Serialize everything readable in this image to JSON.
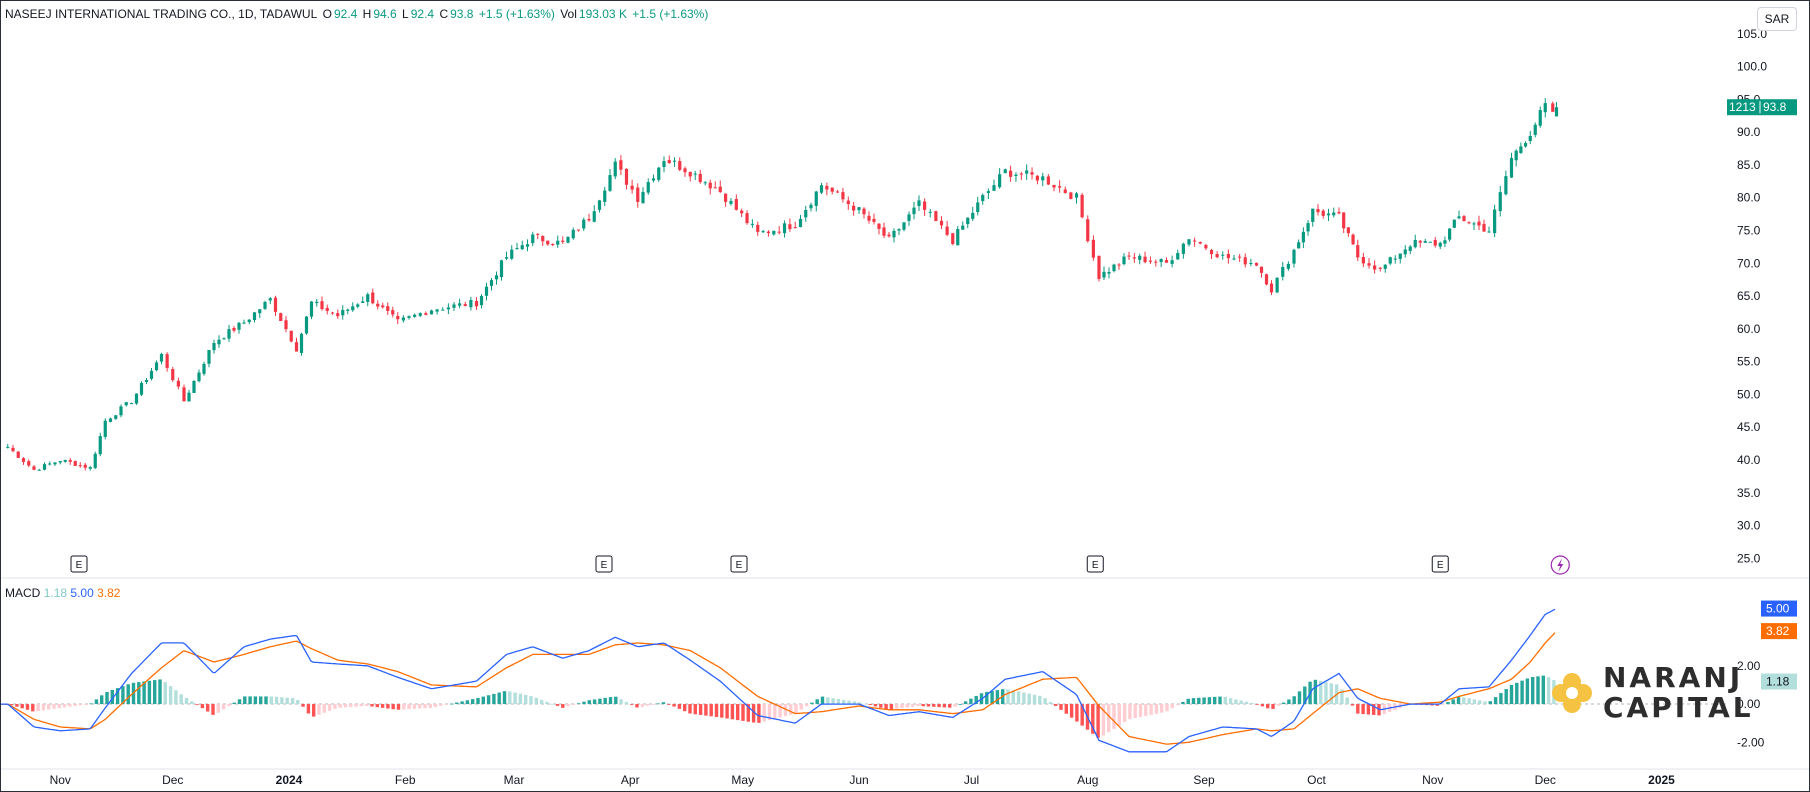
{
  "header": {
    "symbol": "NASEEJ INTERNATIONAL TRADING CO., 1D, TADAWUL",
    "open_label": "O",
    "open": "92.4",
    "high_label": "H",
    "high": "94.6",
    "low_label": "L",
    "low": "92.4",
    "close_label": "C",
    "close": "93.8",
    "change": "+1.5 (+1.63%)",
    "vol_label": "Vol",
    "vol": "193.03 K",
    "vol_change": "+1.5 (+1.63%)"
  },
  "currency": "SAR",
  "macd_header": {
    "label": "MACD",
    "hist": "1.18",
    "macd": "5.00",
    "signal": "3.82"
  },
  "price_badge": {
    "left": "1213",
    "price": "93.8"
  },
  "brand": {
    "line1": "NARANJ",
    "line2": "CAPITAL"
  },
  "event_marker": "E",
  "colors": {
    "up": "#089981",
    "down": "#f23645",
    "macd": "#2962ff",
    "signal": "#ff6d00",
    "hist_up_strong": "#26a69a",
    "hist_up_weak": "#b2dfdb",
    "hist_down_strong": "#ff5252",
    "hist_down_weak": "#ffcdd2",
    "brand_gold": "#f5c242"
  },
  "chart_data": [
    {
      "type": "candlestick",
      "title": "NASEEJ INTERNATIONAL TRADING CO., 1D, TADAWUL",
      "ylim": [
        22,
        110
      ],
      "y_ticks": [
        25.0,
        30.0,
        35.0,
        40.0,
        45.0,
        50.0,
        55.0,
        60.0,
        65.0,
        70.0,
        75.0,
        80.0,
        85.0,
        90.0,
        95.0,
        100.0,
        105.0
      ],
      "x_ticks": [
        "Nov",
        "Dec",
        "2024",
        "Feb",
        "Mar",
        "Apr",
        "May",
        "Jun",
        "Jul",
        "Aug",
        "Sep",
        "Oct",
        "Nov",
        "Dec",
        "2025"
      ],
      "close_path": [
        {
          "date": "2023-10-18",
          "close": 42
        },
        {
          "date": "2023-10-25",
          "close": 38.5
        },
        {
          "date": "2023-11-01",
          "close": 40
        },
        {
          "date": "2023-11-09",
          "close": 38.8
        },
        {
          "date": "2023-11-13",
          "close": 46
        },
        {
          "date": "2023-11-20",
          "close": 49
        },
        {
          "date": "2023-11-28",
          "close": 56
        },
        {
          "date": "2023-12-04",
          "close": 49
        },
        {
          "date": "2023-12-12",
          "close": 58
        },
        {
          "date": "2023-12-20",
          "close": 61
        },
        {
          "date": "2023-12-27",
          "close": 64.5
        },
        {
          "date": "2024-01-03",
          "close": 57
        },
        {
          "date": "2024-01-07",
          "close": 64
        },
        {
          "date": "2024-01-14",
          "close": 62
        },
        {
          "date": "2024-01-22",
          "close": 65
        },
        {
          "date": "2024-01-30",
          "close": 61
        },
        {
          "date": "2024-02-08",
          "close": 63
        },
        {
          "date": "2024-02-20",
          "close": 64
        },
        {
          "date": "2024-02-28",
          "close": 71
        },
        {
          "date": "2024-03-06",
          "close": 74
        },
        {
          "date": "2024-03-14",
          "close": 73
        },
        {
          "date": "2024-03-21",
          "close": 77
        },
        {
          "date": "2024-03-28",
          "close": 85
        },
        {
          "date": "2024-04-03",
          "close": 80
        },
        {
          "date": "2024-04-10",
          "close": 86
        },
        {
          "date": "2024-04-17",
          "close": 84
        },
        {
          "date": "2024-04-25",
          "close": 81
        },
        {
          "date": "2024-05-05",
          "close": 74.5
        },
        {
          "date": "2024-05-15",
          "close": 76
        },
        {
          "date": "2024-05-22",
          "close": 82
        },
        {
          "date": "2024-06-01",
          "close": 78
        },
        {
          "date": "2024-06-09",
          "close": 73.5
        },
        {
          "date": "2024-06-17",
          "close": 79
        },
        {
          "date": "2024-06-26",
          "close": 73.5
        },
        {
          "date": "2024-07-04",
          "close": 80
        },
        {
          "date": "2024-07-10",
          "close": 84
        },
        {
          "date": "2024-07-20",
          "close": 83
        },
        {
          "date": "2024-07-29",
          "close": 80
        },
        {
          "date": "2024-08-04",
          "close": 68
        },
        {
          "date": "2024-08-12",
          "close": 71
        },
        {
          "date": "2024-08-22",
          "close": 70
        },
        {
          "date": "2024-08-28",
          "close": 74
        },
        {
          "date": "2024-09-06",
          "close": 71
        },
        {
          "date": "2024-09-15",
          "close": 70
        },
        {
          "date": "2024-09-19",
          "close": 66
        },
        {
          "date": "2024-09-25",
          "close": 72
        },
        {
          "date": "2024-09-30",
          "close": 78
        },
        {
          "date": "2024-10-07",
          "close": 77
        },
        {
          "date": "2024-10-12",
          "close": 71
        },
        {
          "date": "2024-10-18",
          "close": 69
        },
        {
          "date": "2024-10-26",
          "close": 73
        },
        {
          "date": "2024-11-03",
          "close": 73
        },
        {
          "date": "2024-11-08",
          "close": 77
        },
        {
          "date": "2024-11-16",
          "close": 75
        },
        {
          "date": "2024-11-22",
          "close": 86
        },
        {
          "date": "2024-11-27",
          "close": 90
        },
        {
          "date": "2024-12-01",
          "close": 94
        },
        {
          "date": "2024-12-03",
          "close": 92.4
        },
        {
          "date": "2024-12-04",
          "close": 93.8
        }
      ],
      "last": {
        "open": 92.4,
        "high": 94.6,
        "low": 92.4,
        "close": 93.8,
        "change": 1.5,
        "change_pct": 1.63,
        "volume": "193.03 K"
      },
      "event_dates": [
        "2023-11-06",
        "2024-03-25",
        "2024-04-30",
        "2024-08-03",
        "2024-11-03"
      ]
    },
    {
      "type": "line",
      "title": "MACD",
      "ylim": [
        -3.4,
        6.6
      ],
      "y_ticks": [
        -2.0,
        0.0,
        2.0
      ],
      "last": {
        "histogram": 1.18,
        "macd": 5.0,
        "signal": 3.82
      },
      "series": [
        {
          "name": "MACD",
          "points": [
            {
              "date": "2023-10-18",
              "value": 0
            },
            {
              "date": "2023-10-25",
              "value": -1.2
            },
            {
              "date": "2023-11-01",
              "value": -1.4
            },
            {
              "date": "2023-11-09",
              "value": -1.3
            },
            {
              "date": "2023-11-13",
              "value": -0.2
            },
            {
              "date": "2023-11-20",
              "value": 1.6
            },
            {
              "date": "2023-11-28",
              "value": 3.2
            },
            {
              "date": "2023-12-04",
              "value": 3.2
            },
            {
              "date": "2023-12-12",
              "value": 1.6
            },
            {
              "date": "2023-12-20",
              "value": 3
            },
            {
              "date": "2023-12-27",
              "value": 3.4
            },
            {
              "date": "2024-01-03",
              "value": 3.6
            },
            {
              "date": "2024-01-07",
              "value": 2.2
            },
            {
              "date": "2024-01-14",
              "value": 2.1
            },
            {
              "date": "2024-01-22",
              "value": 2
            },
            {
              "date": "2024-01-30",
              "value": 1.4
            },
            {
              "date": "2024-02-08",
              "value": 0.8
            },
            {
              "date": "2024-02-20",
              "value": 1.2
            },
            {
              "date": "2024-02-28",
              "value": 2.6
            },
            {
              "date": "2024-03-06",
              "value": 3.0
            },
            {
              "date": "2024-03-14",
              "value": 2.4
            },
            {
              "date": "2024-03-21",
              "value": 2.8
            },
            {
              "date": "2024-03-28",
              "value": 3.5
            },
            {
              "date": "2024-04-03",
              "value": 3.0
            },
            {
              "date": "2024-04-10",
              "value": 3.2
            },
            {
              "date": "2024-04-17",
              "value": 2.3
            },
            {
              "date": "2024-04-25",
              "value": 1.2
            },
            {
              "date": "2024-05-05",
              "value": -0.6
            },
            {
              "date": "2024-05-15",
              "value": -1.0
            },
            {
              "date": "2024-05-22",
              "value": 0.0
            },
            {
              "date": "2024-06-01",
              "value": 0.0
            },
            {
              "date": "2024-06-09",
              "value": -0.6
            },
            {
              "date": "2024-06-17",
              "value": -0.4
            },
            {
              "date": "2024-06-26",
              "value": -0.7
            },
            {
              "date": "2024-07-04",
              "value": 0.3
            },
            {
              "date": "2024-07-10",
              "value": 1.3
            },
            {
              "date": "2024-07-20",
              "value": 1.7
            },
            {
              "date": "2024-07-29",
              "value": 0.5
            },
            {
              "date": "2024-08-04",
              "value": -1.9
            },
            {
              "date": "2024-08-12",
              "value": -2.5
            },
            {
              "date": "2024-08-22",
              "value": -2.5
            },
            {
              "date": "2024-08-28",
              "value": -1.7
            },
            {
              "date": "2024-09-06",
              "value": -1.2
            },
            {
              "date": "2024-09-15",
              "value": -1.3
            },
            {
              "date": "2024-09-19",
              "value": -1.7
            },
            {
              "date": "2024-09-25",
              "value": -0.9
            },
            {
              "date": "2024-09-30",
              "value": 0.8
            },
            {
              "date": "2024-10-07",
              "value": 1.6
            },
            {
              "date": "2024-10-12",
              "value": 0.3
            },
            {
              "date": "2024-10-18",
              "value": -0.3
            },
            {
              "date": "2024-10-26",
              "value": 0.0
            },
            {
              "date": "2024-11-03",
              "value": 0.0
            },
            {
              "date": "2024-11-08",
              "value": 0.8
            },
            {
              "date": "2024-11-16",
              "value": 0.9
            },
            {
              "date": "2024-11-22",
              "value": 2.3
            },
            {
              "date": "2024-11-27",
              "value": 3.6
            },
            {
              "date": "2024-12-01",
              "value": 4.7
            },
            {
              "date": "2024-12-04",
              "value": 5.0
            }
          ]
        },
        {
          "name": "Signal",
          "points": [
            {
              "date": "2023-10-18",
              "value": 0
            },
            {
              "date": "2023-10-25",
              "value": -0.8
            },
            {
              "date": "2023-11-01",
              "value": -1.2
            },
            {
              "date": "2023-11-09",
              "value": -1.3
            },
            {
              "date": "2023-11-13",
              "value": -0.8
            },
            {
              "date": "2023-11-20",
              "value": 0.5
            },
            {
              "date": "2023-11-28",
              "value": 1.9
            },
            {
              "date": "2023-12-04",
              "value": 2.8
            },
            {
              "date": "2023-12-12",
              "value": 2.2
            },
            {
              "date": "2023-12-20",
              "value": 2.6
            },
            {
              "date": "2023-12-27",
              "value": 3.0
            },
            {
              "date": "2024-01-03",
              "value": 3.3
            },
            {
              "date": "2024-01-07",
              "value": 2.9
            },
            {
              "date": "2024-01-14",
              "value": 2.3
            },
            {
              "date": "2024-01-22",
              "value": 2.1
            },
            {
              "date": "2024-01-30",
              "value": 1.7
            },
            {
              "date": "2024-02-08",
              "value": 1.0
            },
            {
              "date": "2024-02-20",
              "value": 0.9
            },
            {
              "date": "2024-02-28",
              "value": 1.9
            },
            {
              "date": "2024-03-06",
              "value": 2.6
            },
            {
              "date": "2024-03-14",
              "value": 2.6
            },
            {
              "date": "2024-03-21",
              "value": 2.6
            },
            {
              "date": "2024-03-28",
              "value": 3.1
            },
            {
              "date": "2024-04-03",
              "value": 3.2
            },
            {
              "date": "2024-04-10",
              "value": 3.1
            },
            {
              "date": "2024-04-17",
              "value": 2.8
            },
            {
              "date": "2024-04-25",
              "value": 1.9
            },
            {
              "date": "2024-05-05",
              "value": 0.4
            },
            {
              "date": "2024-05-15",
              "value": -0.5
            },
            {
              "date": "2024-05-22",
              "value": -0.4
            },
            {
              "date": "2024-06-01",
              "value": -0.1
            },
            {
              "date": "2024-06-09",
              "value": -0.3
            },
            {
              "date": "2024-06-17",
              "value": -0.3
            },
            {
              "date": "2024-06-26",
              "value": -0.5
            },
            {
              "date": "2024-07-04",
              "value": -0.3
            },
            {
              "date": "2024-07-10",
              "value": 0.5
            },
            {
              "date": "2024-07-20",
              "value": 1.3
            },
            {
              "date": "2024-07-29",
              "value": 1.4
            },
            {
              "date": "2024-08-04",
              "value": -0.1
            },
            {
              "date": "2024-08-12",
              "value": -1.7
            },
            {
              "date": "2024-08-22",
              "value": -2.1
            },
            {
              "date": "2024-08-28",
              "value": -2.0
            },
            {
              "date": "2024-09-06",
              "value": -1.6
            },
            {
              "date": "2024-09-15",
              "value": -1.3
            },
            {
              "date": "2024-09-19",
              "value": -1.4
            },
            {
              "date": "2024-09-25",
              "value": -1.3
            },
            {
              "date": "2024-09-30",
              "value": -0.5
            },
            {
              "date": "2024-10-07",
              "value": 0.6
            },
            {
              "date": "2024-10-12",
              "value": 0.8
            },
            {
              "date": "2024-10-18",
              "value": 0.3
            },
            {
              "date": "2024-10-26",
              "value": 0.0
            },
            {
              "date": "2024-11-03",
              "value": 0.1
            },
            {
              "date": "2024-11-08",
              "value": 0.4
            },
            {
              "date": "2024-11-16",
              "value": 0.8
            },
            {
              "date": "2024-11-22",
              "value": 1.3
            },
            {
              "date": "2024-11-27",
              "value": 2.2
            },
            {
              "date": "2024-12-01",
              "value": 3.2
            },
            {
              "date": "2024-12-04",
              "value": 3.82
            }
          ]
        }
      ]
    }
  ]
}
